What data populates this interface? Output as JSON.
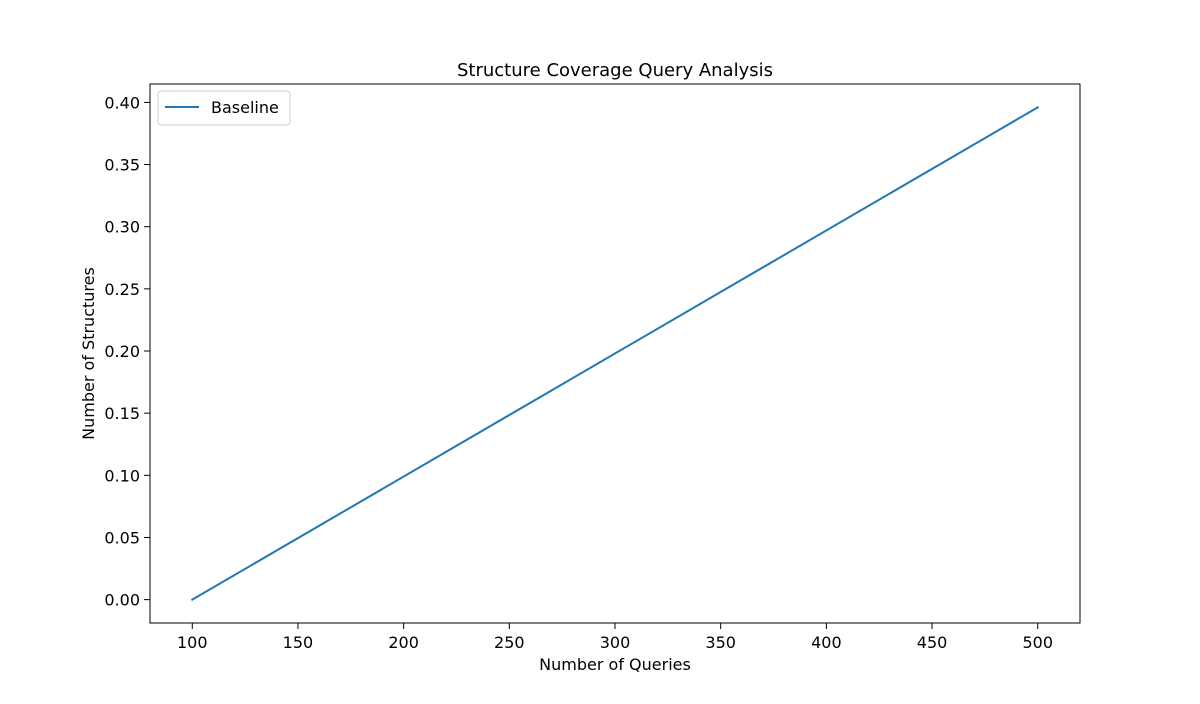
{
  "chart_data": {
    "type": "line",
    "title": "Structure Coverage Query Analysis",
    "xlabel": "Number of Queries",
    "ylabel": "Number of Structures",
    "xlim": [
      80,
      520
    ],
    "ylim": [
      -0.0188,
      0.4148
    ],
    "x_ticks": [
      100,
      150,
      200,
      250,
      300,
      350,
      400,
      450,
      500
    ],
    "x_tick_labels": [
      "100",
      "150",
      "200",
      "250",
      "300",
      "350",
      "400",
      "450",
      "500"
    ],
    "y_ticks": [
      0.0,
      0.05,
      0.1,
      0.15,
      0.2,
      0.25,
      0.3,
      0.35,
      0.4
    ],
    "y_tick_labels": [
      "0.00",
      "0.05",
      "0.10",
      "0.15",
      "0.20",
      "0.25",
      "0.30",
      "0.35",
      "0.40"
    ],
    "grid": false,
    "legend_position": "top-left",
    "series": [
      {
        "name": "Baseline",
        "color": "#1f77b4",
        "x": [
          100,
          500
        ],
        "y": [
          0.0,
          0.396
        ]
      }
    ]
  }
}
